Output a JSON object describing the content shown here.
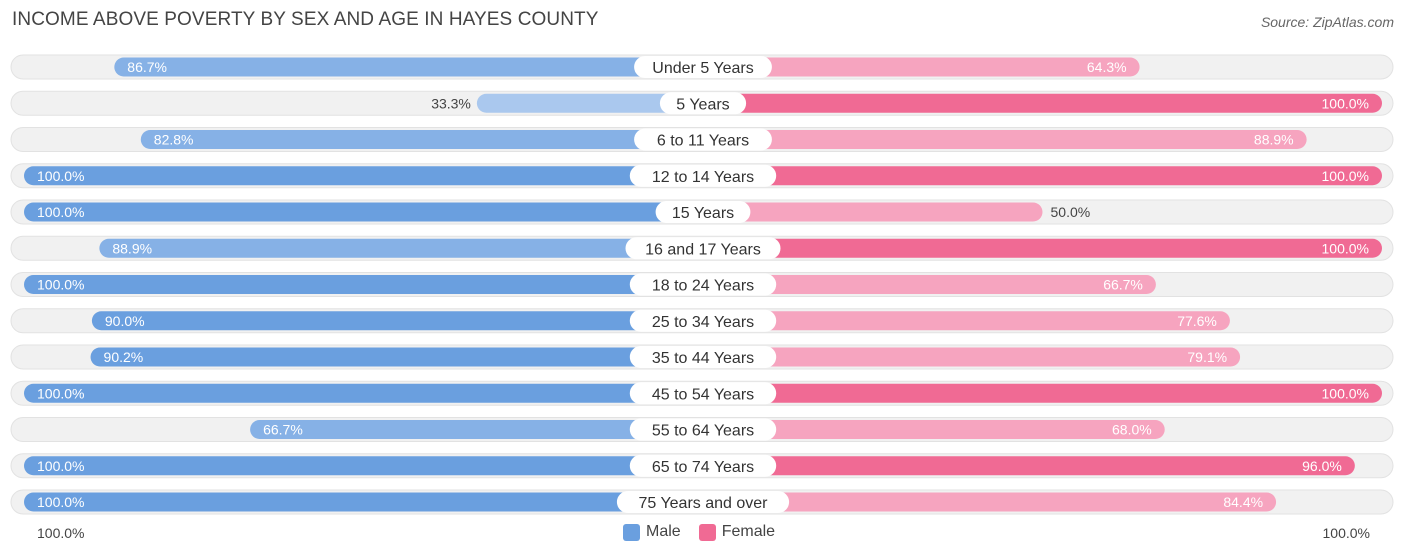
{
  "title": "INCOME ABOVE POVERTY BY SEX AND AGE IN HAYES COUNTY",
  "source": "Source: ZipAtlas.com",
  "colors": {
    "male_strong": "#6a9fdf",
    "male_light": "#aac8ee",
    "female_strong": "#f06a94",
    "female_light": "#f6a4bf",
    "track": "#f1f1f1"
  },
  "legend": {
    "male": "Male",
    "female": "Female"
  },
  "footer": {
    "left_axis": "100.0%",
    "right_axis": "100.0%"
  },
  "chart_data": {
    "type": "bar",
    "orientation": "horizontal-diverging",
    "categories": [
      "Under 5 Years",
      "5 Years",
      "6 to 11 Years",
      "12 to 14 Years",
      "15 Years",
      "16 and 17 Years",
      "18 to 24 Years",
      "25 to 34 Years",
      "35 to 44 Years",
      "45 to 54 Years",
      "55 to 64 Years",
      "65 to 74 Years",
      "75 Years and over"
    ],
    "series": [
      {
        "name": "Male",
        "values": [
          86.7,
          33.3,
          82.8,
          100.0,
          100.0,
          88.9,
          100.0,
          90.0,
          90.2,
          100.0,
          66.7,
          100.0,
          100.0
        ],
        "labels": [
          "86.7%",
          "33.3%",
          "82.8%",
          "100.0%",
          "100.0%",
          "88.9%",
          "100.0%",
          "90.0%",
          "90.2%",
          "100.0%",
          "66.7%",
          "100.0%",
          "100.0%"
        ]
      },
      {
        "name": "Female",
        "values": [
          64.3,
          100.0,
          88.9,
          100.0,
          50.0,
          100.0,
          66.7,
          77.6,
          79.1,
          100.0,
          68.0,
          96.0,
          84.4
        ],
        "labels": [
          "64.3%",
          "100.0%",
          "88.9%",
          "100.0%",
          "50.0%",
          "100.0%",
          "66.7%",
          "77.6%",
          "79.1%",
          "100.0%",
          "68.0%",
          "96.0%",
          "84.4%"
        ]
      }
    ],
    "xlim": [
      0,
      100
    ],
    "legend_position": "bottom-center"
  }
}
